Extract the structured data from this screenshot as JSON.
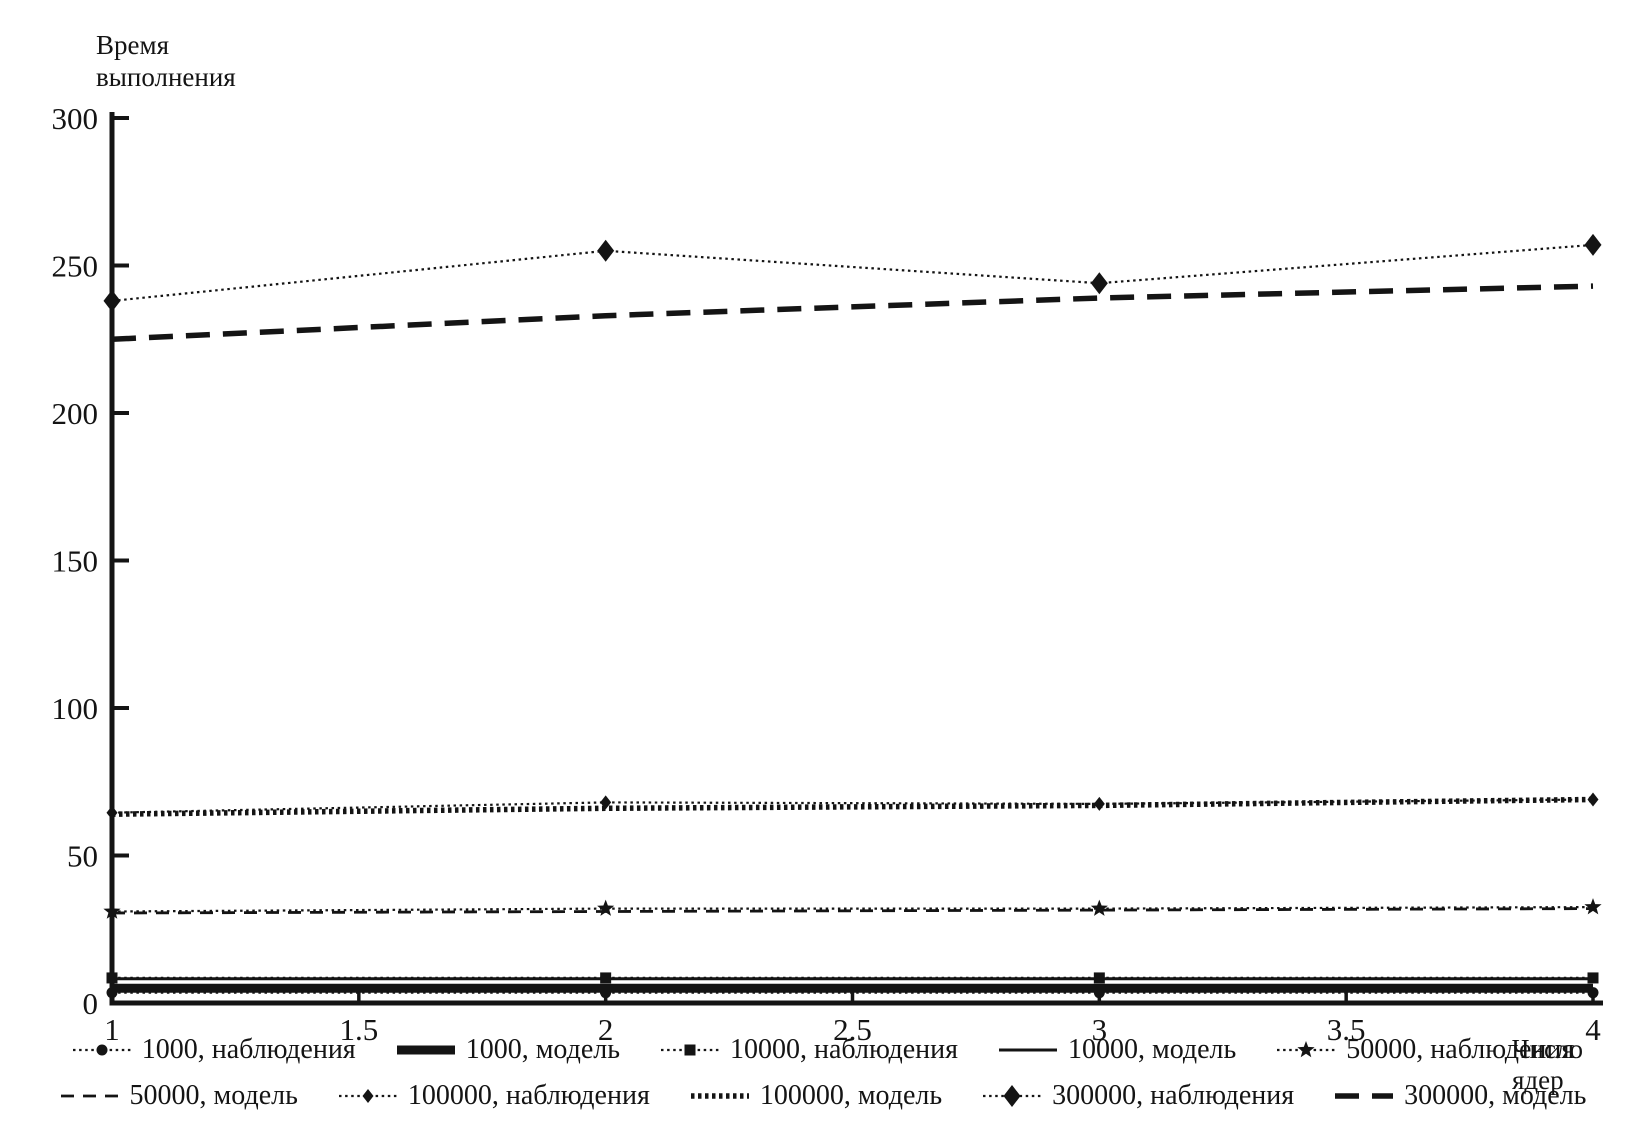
{
  "page": {
    "background": "#ffffff",
    "ink": "#141414"
  },
  "chart_data": {
    "type": "line",
    "title": "",
    "ylabel": "Время выполнения",
    "xlabel": "Число ядер",
    "x": [
      1,
      2,
      3,
      4
    ],
    "xticks": [
      "1",
      "1.5",
      "2",
      "2.5",
      "3",
      "3.5",
      "4"
    ],
    "xtick_values": [
      1,
      1.5,
      2,
      2.5,
      3,
      3.5,
      4
    ],
    "yticks": [
      "0",
      "50",
      "100",
      "150",
      "200",
      "250",
      "300"
    ],
    "ytick_values": [
      0,
      50,
      100,
      150,
      200,
      250,
      300
    ],
    "xlim": [
      1,
      4
    ],
    "ylim": [
      0,
      300
    ],
    "grid": false,
    "legend_position": "bottom-two-rows",
    "series": [
      {
        "name": "1000, наблюдения",
        "style": "dotted-thin",
        "marker": "circle",
        "values": [
          3.5,
          3.5,
          3.5,
          3.5
        ]
      },
      {
        "name": "1000, модель",
        "style": "solid-thick",
        "marker": "none",
        "values": [
          5,
          5,
          5,
          5
        ]
      },
      {
        "name": "10000, наблюдения",
        "style": "dotted-thin",
        "marker": "square",
        "values": [
          8.5,
          8.5,
          8.5,
          8.5
        ]
      },
      {
        "name": "10000, модель",
        "style": "solid-thin",
        "marker": "none",
        "values": [
          8.2,
          8.2,
          8.2,
          8.2
        ]
      },
      {
        "name": "50000, наблюдения",
        "style": "dotted-thin",
        "marker": "star",
        "values": [
          31,
          32,
          32,
          32.5
        ]
      },
      {
        "name": "50000, модель",
        "style": "dashed-thin",
        "marker": "none",
        "values": [
          30.5,
          31,
          31.5,
          32
        ]
      },
      {
        "name": "100000, наблюдения",
        "style": "dotted-thin",
        "marker": "diamond-small",
        "values": [
          64.5,
          68,
          67.5,
          69
        ]
      },
      {
        "name": "100000, модель",
        "style": "dotted-thick",
        "marker": "none",
        "values": [
          64,
          66,
          67,
          69
        ]
      },
      {
        "name": "300000, наблюдения",
        "style": "dotted-thin",
        "marker": "diamond",
        "values": [
          238,
          255,
          244,
          257
        ]
      },
      {
        "name": "300000, модель",
        "style": "dashed-thick",
        "marker": "none",
        "values": [
          225,
          233,
          239,
          243
        ]
      }
    ]
  }
}
